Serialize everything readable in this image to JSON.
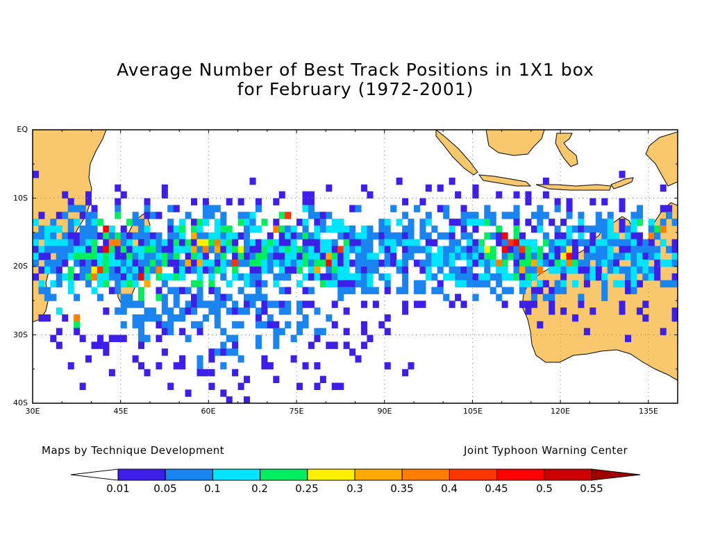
{
  "title": {
    "line1": "Average Number of Best Track Positions in 1X1 box",
    "line2": "for February (1972-2001)"
  },
  "map": {
    "lat_range": [
      -40,
      0
    ],
    "lon_range": [
      30,
      140
    ],
    "y_ticks": [
      "EQ",
      "10S",
      "20S",
      "30S",
      "40S"
    ],
    "x_ticks": [
      "30E",
      "45E",
      "60E",
      "75E",
      "90E",
      "105E",
      "120E",
      "135E"
    ],
    "grid": "dotted",
    "land_color": "#f9c86c",
    "ocean_color": "#ffffff"
  },
  "credits": {
    "left": "Maps by Technique Development",
    "right": "Joint Typhoon Warning Center"
  },
  "colorbar": {
    "labels": [
      "0.01",
      "0.05",
      "0.1",
      "0.2",
      "0.25",
      "0.3",
      "0.35",
      "0.4",
      "0.45",
      "0.5",
      "0.55"
    ],
    "colors": [
      "#ffffff",
      "#3c1fe8",
      "#1a84f0",
      "#00e5ff",
      "#00ee60",
      "#fff000",
      "#ffaa00",
      "#ff7d00",
      "#ff3500",
      "#ff0000",
      "#cc0000",
      "#a00000"
    ]
  }
}
